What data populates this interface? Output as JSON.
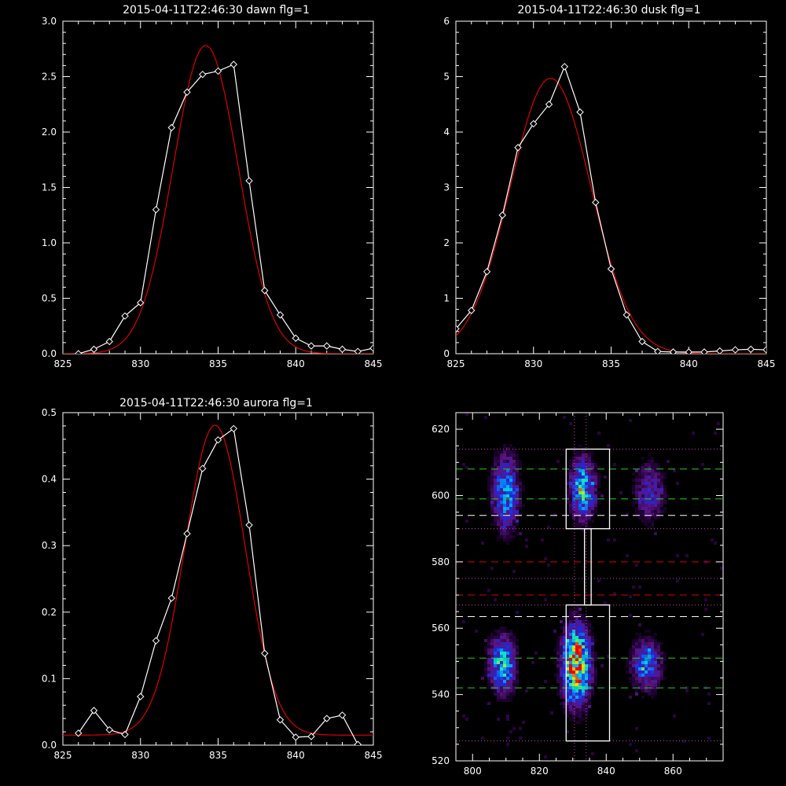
{
  "colors": {
    "background": "#000000",
    "axes": "#ffffff",
    "observed": "#ffffff",
    "fit": "#dd0000",
    "green_dash": "#22cc22",
    "white_dash": "#ffffff",
    "red_dash": "#dd0000",
    "dotted": "#cc44aa"
  },
  "chart_data": [
    {
      "id": "dawn",
      "type": "line",
      "title": "2015-04-11T22:46:30 dawn flg=1",
      "xlim": [
        825,
        845
      ],
      "ylim": [
        0,
        3.0
      ],
      "xticks": [
        825,
        830,
        835,
        840,
        845
      ],
      "yticks": [
        0,
        0.5,
        1.0,
        1.5,
        2.0,
        2.5,
        3.0
      ],
      "ytick_labels": [
        "0.0",
        "0.5",
        "1.0",
        "1.5",
        "2.0",
        "2.5",
        "3.0"
      ],
      "series": [
        {
          "kind": "observed",
          "marker": "diamond",
          "x": [
            826,
            827,
            828,
            829,
            830,
            831,
            832,
            833,
            834,
            835,
            836,
            837,
            838,
            839,
            840,
            841,
            842,
            843,
            844,
            845
          ],
          "y": [
            0.0,
            0.04,
            0.11,
            0.34,
            0.46,
            1.3,
            2.04,
            2.36,
            2.52,
            2.55,
            2.61,
            1.56,
            0.57,
            0.35,
            0.14,
            0.07,
            0.07,
            0.04,
            0.02,
            0.05
          ]
        },
        {
          "kind": "fit",
          "gaussian": {
            "amplitude": 2.78,
            "center": 834.2,
            "sigma": 2.1,
            "offset": 0.0
          }
        }
      ]
    },
    {
      "id": "dusk",
      "type": "line",
      "title": "2015-04-11T22:46:30 dusk flg=1",
      "xlim": [
        825,
        845
      ],
      "ylim": [
        0,
        6
      ],
      "xticks": [
        825,
        830,
        835,
        840,
        845
      ],
      "yticks": [
        0,
        1,
        2,
        3,
        4,
        5,
        6
      ],
      "ytick_labels": [
        "0",
        "1",
        "2",
        "3",
        "4",
        "5",
        "6"
      ],
      "series": [
        {
          "kind": "observed",
          "marker": "diamond",
          "x": [
            825,
            826,
            827,
            828,
            829,
            830,
            831,
            832,
            833,
            834,
            835,
            836,
            837,
            838,
            839,
            840,
            841,
            842,
            843,
            844,
            845
          ],
          "y": [
            0.45,
            0.78,
            1.48,
            2.5,
            3.72,
            4.15,
            4.5,
            5.18,
            4.36,
            2.73,
            1.53,
            0.7,
            0.22,
            0.04,
            0.03,
            0.03,
            0.03,
            0.05,
            0.07,
            0.08,
            0.07
          ]
        },
        {
          "kind": "fit",
          "gaussian": {
            "amplitude": 4.97,
            "center": 831.1,
            "sigma": 2.6,
            "offset": 0.0
          }
        }
      ]
    },
    {
      "id": "aurora",
      "type": "line",
      "title": "2015-04-11T22:46:30 aurora flg=1",
      "xlim": [
        825,
        845
      ],
      "ylim": [
        0,
        0.5
      ],
      "xticks": [
        825,
        830,
        835,
        840,
        845
      ],
      "yticks": [
        0,
        0.1,
        0.2,
        0.3,
        0.4,
        0.5
      ],
      "ytick_labels": [
        "0.0",
        "0.1",
        "0.2",
        "0.3",
        "0.4",
        "0.5"
      ],
      "series": [
        {
          "kind": "observed",
          "marker": "diamond",
          "x": [
            826,
            827,
            828,
            829,
            830,
            831,
            832,
            833,
            834,
            835,
            836,
            837,
            838,
            839,
            840,
            841,
            842,
            843,
            844,
            845
          ],
          "y": [
            0.018,
            0.052,
            0.023,
            0.016,
            0.073,
            0.157,
            0.221,
            0.318,
            0.416,
            0.459,
            0.476,
            0.331,
            0.138,
            0.038,
            0.012,
            0.013,
            0.04,
            0.045,
            0.001,
            -0.005
          ]
        },
        {
          "kind": "fit",
          "gaussian": {
            "amplitude": 0.466,
            "center": 834.8,
            "sigma": 1.95,
            "offset": 0.015
          }
        }
      ]
    },
    {
      "id": "image",
      "type": "heatmap",
      "title": "",
      "xlim": [
        795,
        875
      ],
      "ylim": [
        520,
        625
      ],
      "xticks": [
        800,
        820,
        840,
        860
      ],
      "yticks": [
        520,
        540,
        560,
        580,
        600,
        620
      ],
      "blobs": [
        {
          "x": 809,
          "y": 549,
          "sx": 2.6,
          "sy": 5.5,
          "amp": 0.62
        },
        {
          "x": 831,
          "y": 549,
          "sx": 2.7,
          "sy": 7.5,
          "amp": 1.0
        },
        {
          "x": 852,
          "y": 549,
          "sx": 3.0,
          "sy": 5.0,
          "amp": 0.45
        },
        {
          "x": 810,
          "y": 601,
          "sx": 2.6,
          "sy": 7.5,
          "amp": 0.5
        },
        {
          "x": 833,
          "y": 602,
          "sx": 2.5,
          "sy": 6.0,
          "amp": 0.6
        },
        {
          "x": 853,
          "y": 601,
          "sx": 3.0,
          "sy": 6.0,
          "amp": 0.3
        }
      ],
      "boxes": [
        {
          "x0": 828,
          "x1": 841,
          "y0": 526,
          "y1": 567
        },
        {
          "x0": 828,
          "x1": 841,
          "y0": 590,
          "y1": 614
        },
        {
          "x0": 833.5,
          "x1": 835.5,
          "y0": 567,
          "y1": 590
        }
      ],
      "hlines": [
        {
          "y": 608,
          "style": "green_dash"
        },
        {
          "y": 599,
          "style": "green_dash"
        },
        {
          "y": 594,
          "style": "white_dash"
        },
        {
          "y": 580,
          "style": "red_dash"
        },
        {
          "y": 570,
          "style": "red_dash"
        },
        {
          "y": 563.5,
          "style": "white_dash"
        },
        {
          "y": 551,
          "style": "green_dash"
        },
        {
          "y": 542,
          "style": "green_dash"
        },
        {
          "y": 614,
          "style": "dotted"
        },
        {
          "y": 590,
          "style": "dotted"
        },
        {
          "y": 575,
          "style": "dotted"
        },
        {
          "y": 567,
          "style": "dotted"
        },
        {
          "y": 526,
          "style": "dotted"
        }
      ],
      "vlines": [
        {
          "x": 830.5,
          "style": "dotted"
        },
        {
          "x": 834,
          "style": "dotted"
        }
      ]
    }
  ]
}
